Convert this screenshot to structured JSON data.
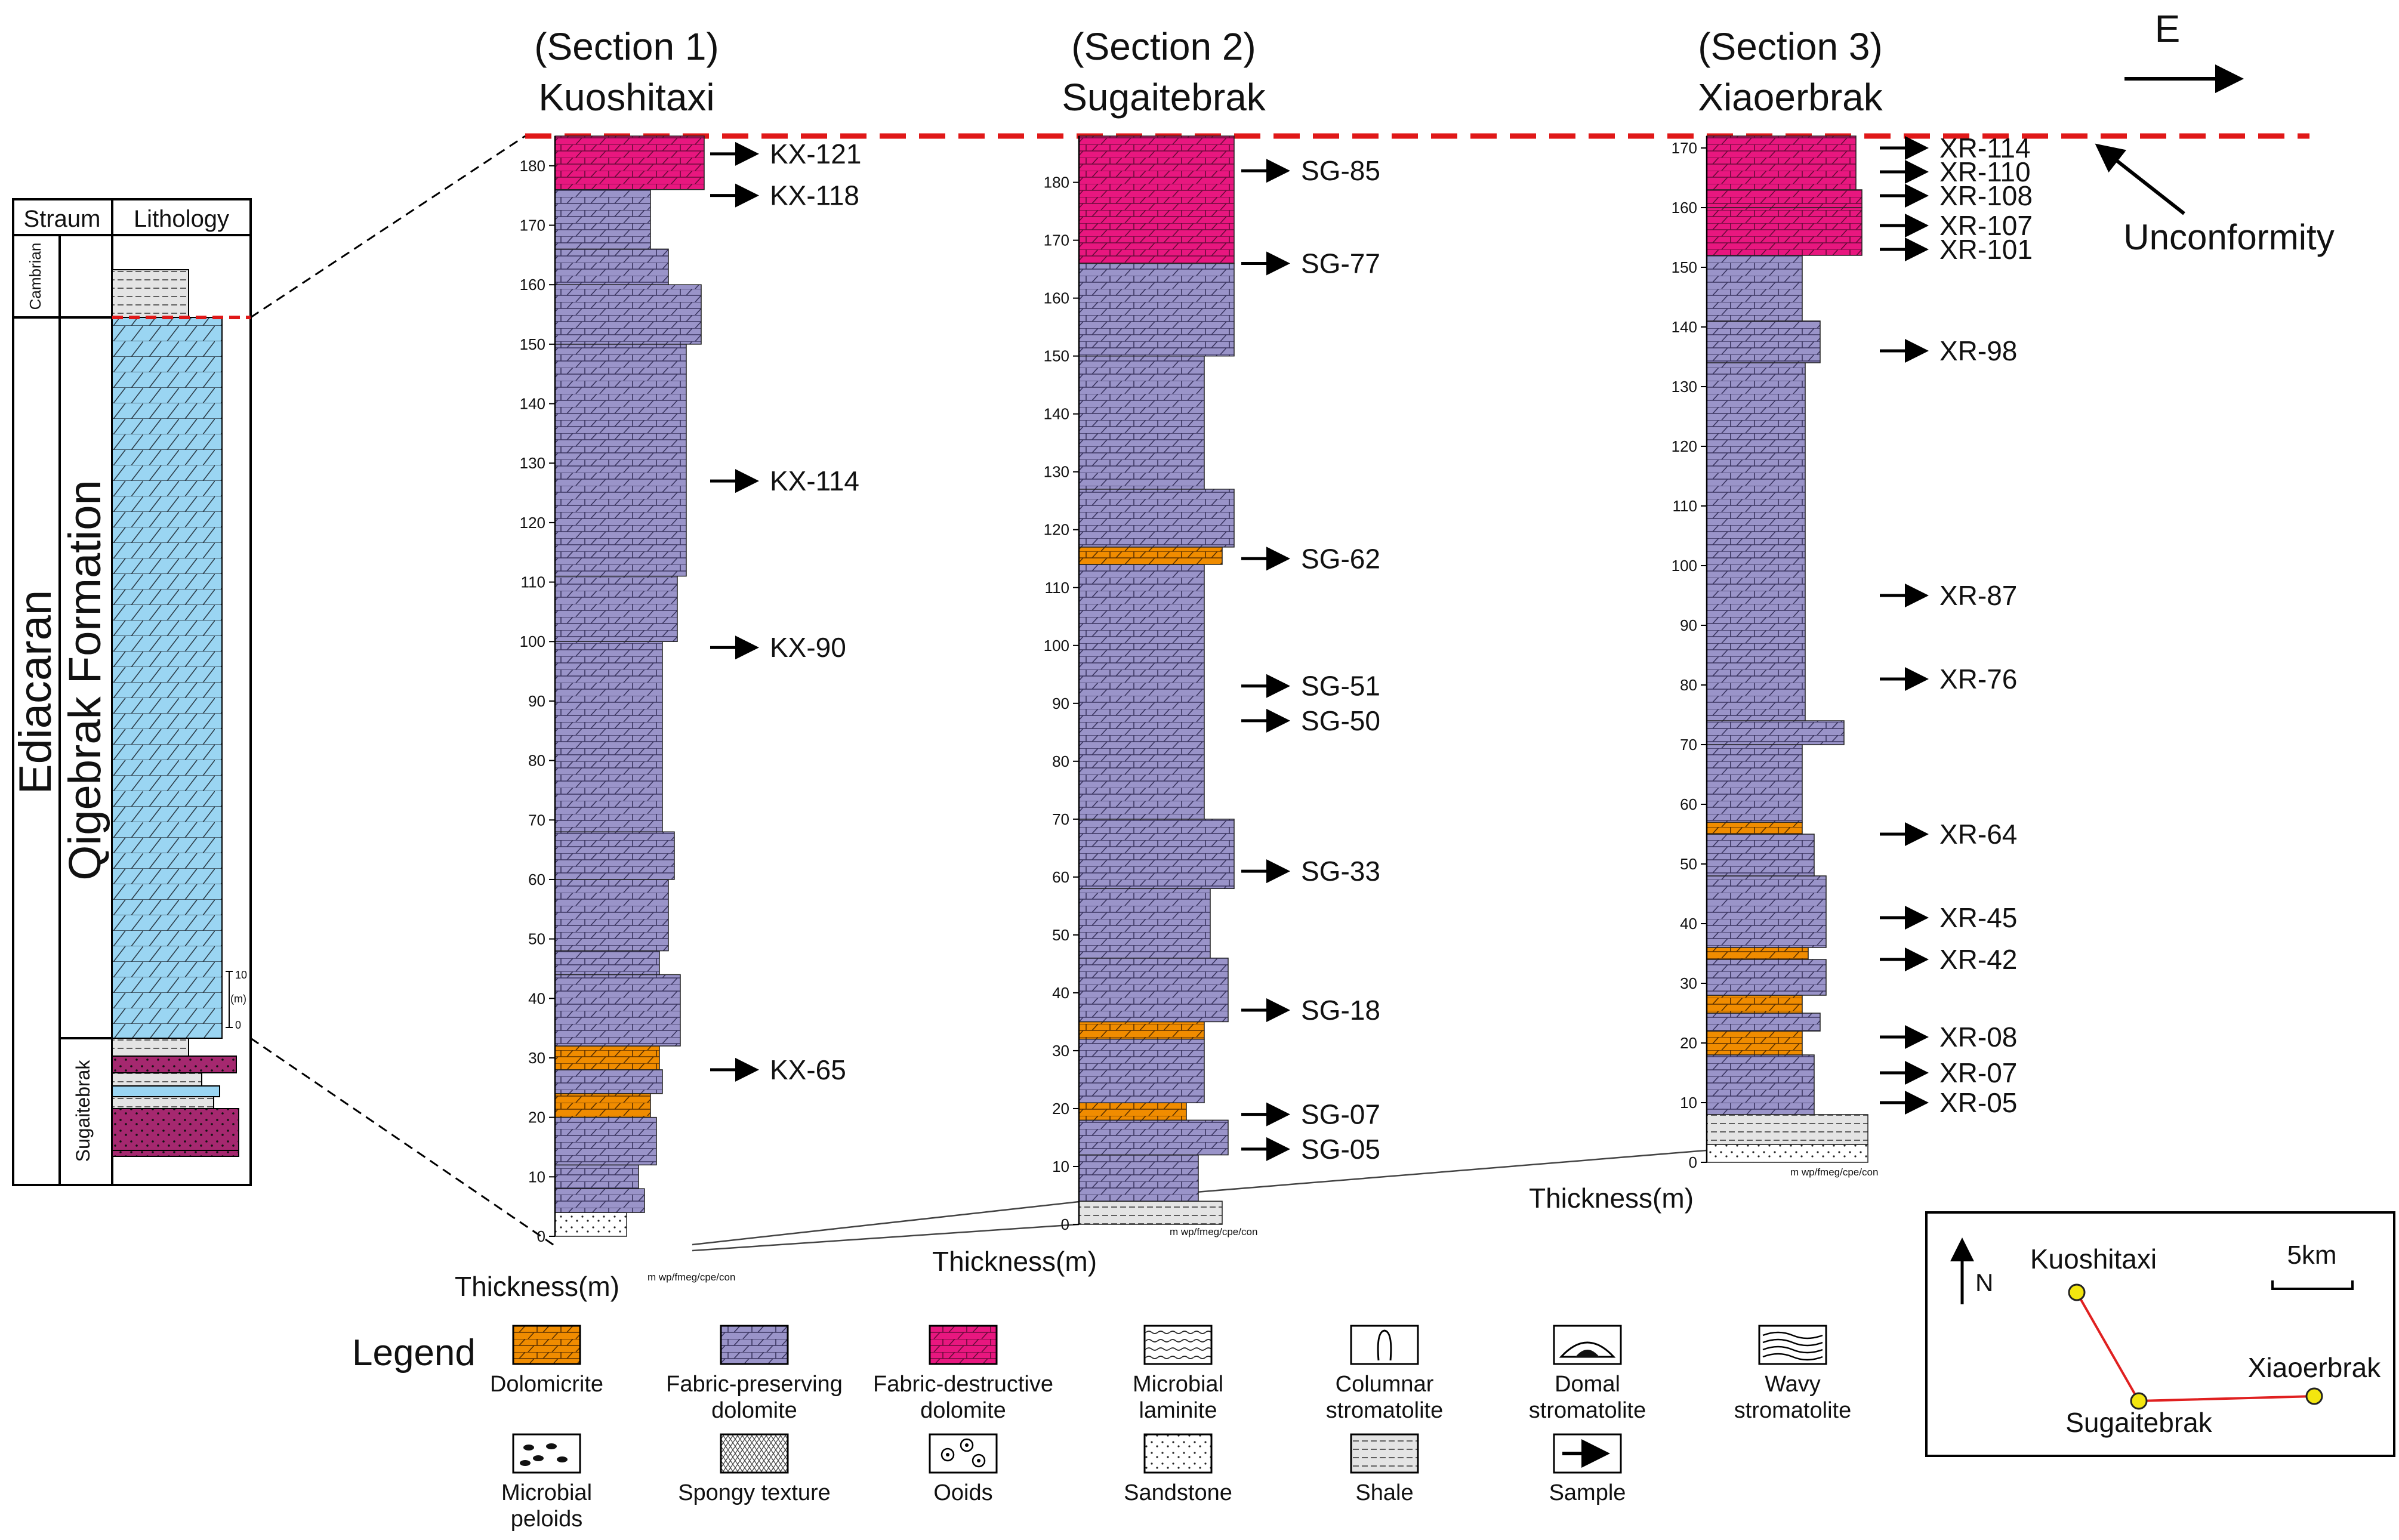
{
  "colors": {
    "dolomicrite": "#f08c00",
    "fabric_preserving": "#9a94c9",
    "fabric_destructive": "#e8177f",
    "lithology_blue": "#9ad5f2",
    "sugaitebrak_magenta": "#a5286f",
    "unconformity": "#e01818",
    "map_line": "#e02020",
    "map_point": "#f3e60f"
  },
  "direction": {
    "label": "E"
  },
  "unconformity": {
    "label": "Unconformity"
  },
  "strat_column": {
    "header_stratum": "Straum",
    "header_lithology": "Lithology",
    "system_label": "Ediacaran",
    "formation_label": "Qigebrak Formation",
    "cambrian_label": "Cambrian",
    "sugaitebrak_label": "Sugaitebrak",
    "scale_top": "10",
    "scale_unit": "(m)",
    "scale_bottom": "0"
  },
  "sections": [
    {
      "heading": "(Section 1)",
      "name": "Kuoshitaxi",
      "axis_label": "Thickness(m)",
      "tick_values": [
        "0",
        "10",
        "20",
        "30",
        "40",
        "50",
        "60",
        "70",
        "80",
        "90",
        "100",
        "110",
        "120",
        "130",
        "140",
        "150",
        "160",
        "170",
        "180"
      ],
      "max_thickness": 185,
      "samples": [
        {
          "id": "KX-121",
          "height": 182
        },
        {
          "id": "KX-118",
          "height": 175
        },
        {
          "id": "KX-114",
          "height": 127
        },
        {
          "id": "KX-90",
          "height": 99
        },
        {
          "id": "KX-65",
          "height": 28
        }
      ],
      "grain_scale": "m wp/fmeg/cpe/con"
    },
    {
      "heading": "(Section 2)",
      "name": "Sugaitebrak",
      "axis_label": "Thickness(m)",
      "tick_values": [
        "0",
        "10",
        "20",
        "30",
        "40",
        "50",
        "60",
        "70",
        "80",
        "90",
        "100",
        "110",
        "120",
        "130",
        "140",
        "150",
        "160",
        "170",
        "180"
      ],
      "max_thickness": 188,
      "samples": [
        {
          "id": "SG-85",
          "height": 182
        },
        {
          "id": "SG-77",
          "height": 166
        },
        {
          "id": "SG-62",
          "height": 115
        },
        {
          "id": "SG-51",
          "height": 93
        },
        {
          "id": "SG-50",
          "height": 87
        },
        {
          "id": "SG-33",
          "height": 61
        },
        {
          "id": "SG-18",
          "height": 37
        },
        {
          "id": "SG-07",
          "height": 19
        },
        {
          "id": "SG-05",
          "height": 13
        }
      ],
      "grain_scale": "m wp/fmeg/cpe/con"
    },
    {
      "heading": "(Section 3)",
      "name": "Xiaoerbrak",
      "axis_label": "Thickness(m)",
      "tick_values": [
        "0",
        "10",
        "20",
        "30",
        "40",
        "50",
        "60",
        "70",
        "80",
        "90",
        "100",
        "110",
        "120",
        "130",
        "140",
        "150",
        "160",
        "170"
      ],
      "max_thickness": 172,
      "samples": [
        {
          "id": "XR-114",
          "height": 170
        },
        {
          "id": "XR-110",
          "height": 166
        },
        {
          "id": "XR-108",
          "height": 162
        },
        {
          "id": "XR-107",
          "height": 157
        },
        {
          "id": "XR-101",
          "height": 153
        },
        {
          "id": "XR-98",
          "height": 136
        },
        {
          "id": "XR-87",
          "height": 95
        },
        {
          "id": "XR-76",
          "height": 81
        },
        {
          "id": "XR-64",
          "height": 55
        },
        {
          "id": "XR-45",
          "height": 41
        },
        {
          "id": "XR-42",
          "height": 34
        },
        {
          "id": "XR-08",
          "height": 21
        },
        {
          "id": "XR-07",
          "height": 15
        },
        {
          "id": "XR-05",
          "height": 10
        }
      ],
      "grain_scale": "m wp/fmeg/cpe/con"
    }
  ],
  "legend": {
    "title": "Legend",
    "items": [
      {
        "key": "dolomicrite",
        "label": "Dolomicrite"
      },
      {
        "key": "fabric_preserving",
        "label": "Fabric-preserving dolomite"
      },
      {
        "key": "fabric_destructive",
        "label": "Fabric-destructive dolomite"
      },
      {
        "key": "microbial_laminite",
        "label": "Microbial laminite"
      },
      {
        "key": "columnar_stromatolite",
        "label": "Columnar stromatolite"
      },
      {
        "key": "domal_stromatolite",
        "label": "Domal stromatolite"
      },
      {
        "key": "wavy_stromatolite",
        "label": "Wavy stromatolite"
      },
      {
        "key": "microbial_peloids",
        "label": "Microbial peloids"
      },
      {
        "key": "spongy_texture",
        "label": "Spongy texture"
      },
      {
        "key": "ooids",
        "label": "Ooids"
      },
      {
        "key": "sandstone",
        "label": "Sandstone"
      },
      {
        "key": "shale",
        "label": "Shale"
      },
      {
        "key": "sample",
        "label": "Sample"
      }
    ]
  },
  "location_map": {
    "north_label": "N",
    "scale_label": "5km",
    "sites": [
      "Kuoshitaxi",
      "Sugaitebrak",
      "Xiaoerbrak"
    ]
  }
}
